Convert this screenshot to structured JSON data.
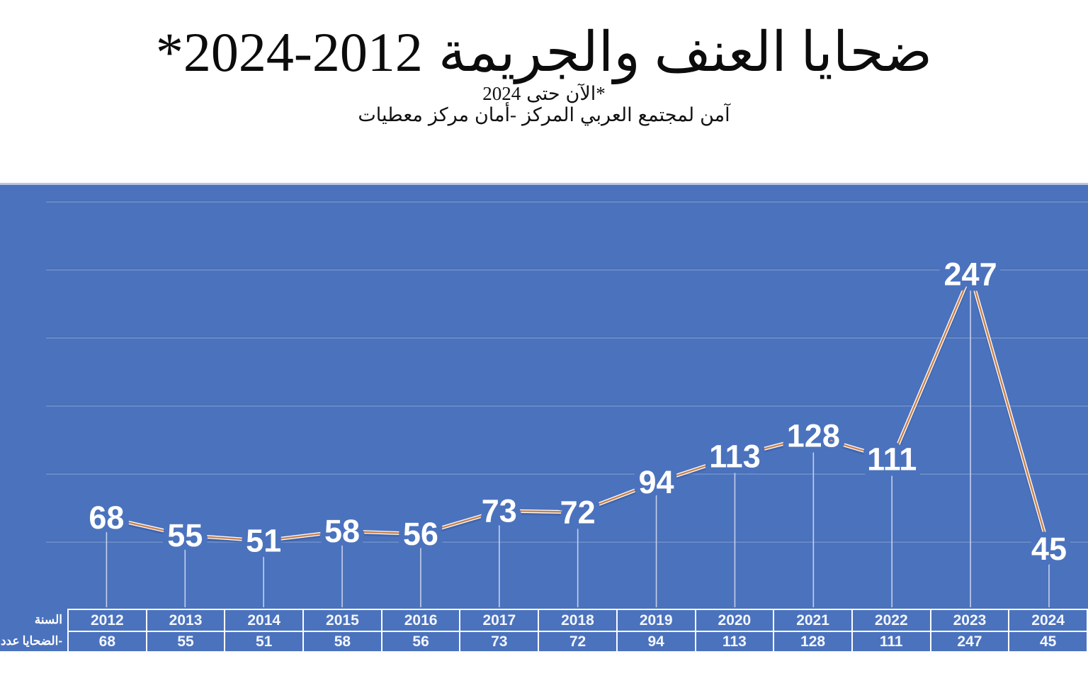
{
  "title": {
    "range_part": "*2024-2012",
    "arabic_part": "ضحايا العنف والجريمة"
  },
  "subtitle_line1_parts": [
    "2024",
    "حتى",
    "الآن*"
  ],
  "subtitle_line2_parts": [
    "معطيات",
    "مركز",
    "أمان-",
    "المركز",
    "العربي",
    "لمجتمع",
    "آمن"
  ],
  "table": {
    "year_row_label": "السنة",
    "value_row_label_parts": [
      "عدد",
      "الضحايا-"
    ],
    "years": [
      "2012",
      "2013",
      "2014",
      "2015",
      "2016",
      "2017",
      "2018",
      "2019",
      "2020",
      "2021",
      "2022",
      "2023",
      "2024"
    ],
    "values": [
      "68",
      "55",
      "51",
      "58",
      "56",
      "73",
      "72",
      "94",
      "113",
      "128",
      "111",
      "247",
      "45"
    ]
  },
  "chart_data": {
    "type": "line",
    "title": "ضحايا العنف والجريمة 2012-2024*",
    "subtitle": "*2024 حتى الآن — معطيات مركز أمان- المركز العربي لمجتمع آمن",
    "categories": [
      2012,
      2013,
      2014,
      2015,
      2016,
      2017,
      2018,
      2019,
      2020,
      2021,
      2022,
      2023,
      2024
    ],
    "values": [
      68,
      55,
      51,
      58,
      56,
      73,
      72,
      94,
      113,
      128,
      111,
      247,
      45
    ],
    "series_name": "عدد الضحايا",
    "ylim": [
      0,
      300
    ],
    "grid_interval": 50,
    "grid": true,
    "legend": false,
    "data_labels": "center",
    "colors": {
      "panel_background": "#4b72bd",
      "line": "#c8824e",
      "line_highlight": "#ffffff",
      "gridline": "#7795d0",
      "drop_line": "#c5d0ea",
      "label_text": "#ffffff",
      "table_border": "#fbfcfe",
      "title_text": "#0c0c0c"
    }
  }
}
